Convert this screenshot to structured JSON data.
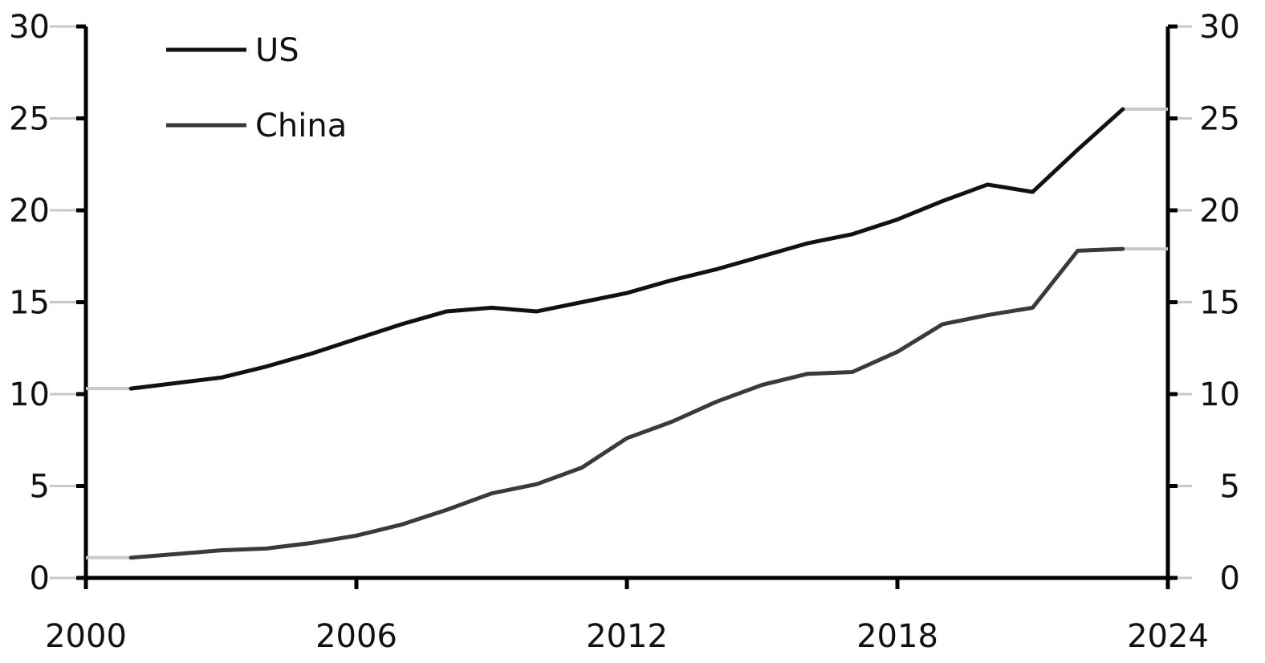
{
  "chart_data": {
    "type": "line",
    "x": [
      2001,
      2002,
      2003,
      2004,
      2005,
      2006,
      2007,
      2008,
      2009,
      2010,
      2011,
      2012,
      2013,
      2014,
      2015,
      2016,
      2017,
      2018,
      2019,
      2020,
      2021,
      2022,
      2023
    ],
    "series": [
      {
        "name": "US",
        "color": "#111111",
        "values": [
          10.3,
          10.6,
          10.9,
          11.5,
          12.2,
          13.0,
          13.8,
          14.5,
          14.7,
          14.5,
          15.0,
          15.5,
          16.2,
          16.8,
          17.5,
          18.2,
          18.7,
          19.5,
          20.5,
          21.4,
          21.0,
          23.3,
          25.5
        ]
      },
      {
        "name": "China",
        "color": "#3a3a3a",
        "values": [
          1.1,
          1.3,
          1.5,
          1.6,
          1.9,
          2.3,
          2.9,
          3.7,
          4.6,
          5.1,
          6.0,
          7.6,
          8.5,
          9.6,
          10.5,
          11.1,
          11.2,
          12.3,
          13.8,
          14.3,
          14.7,
          17.8,
          17.9
        ]
      }
    ],
    "xlim": [
      2000,
      2024
    ],
    "ylim": [
      0,
      30
    ],
    "x_ticks": [
      "2000",
      "2006",
      "2012",
      "2018",
      "2024"
    ],
    "y_ticks_left": [
      "0",
      "5",
      "10",
      "15",
      "20",
      "25",
      "30"
    ],
    "y_ticks_right": [
      "0",
      "5",
      "10",
      "15",
      "20",
      "25",
      "30"
    ],
    "legend_position": "top-left",
    "grid": false,
    "axis_color": "#000000",
    "leader_color": "#c8c8c8"
  }
}
